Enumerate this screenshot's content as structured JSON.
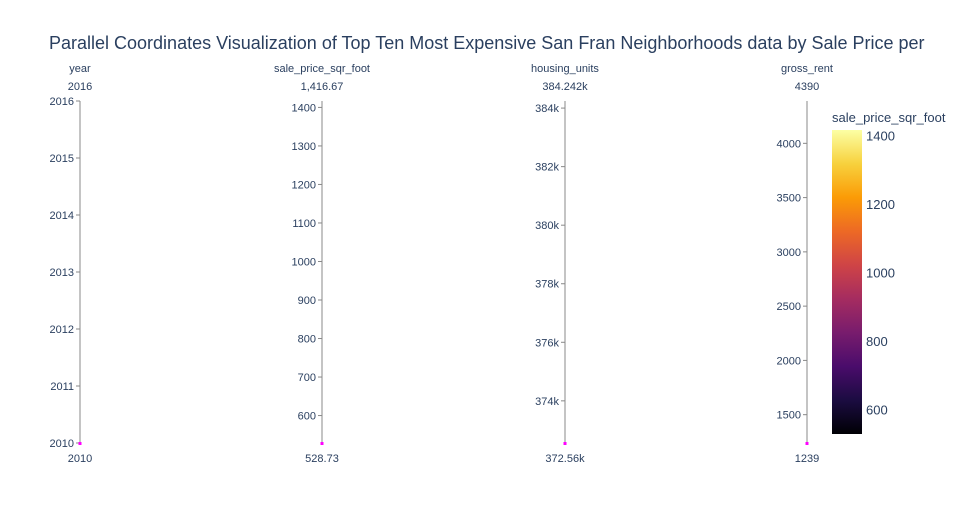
{
  "chart_data": {
    "type": "parallel_coordinates",
    "title": "Parallel Coordinates Visualization of Top Ten Most Expensive San Fran Neighborhoods data by Sale Price per",
    "dimensions": [
      {
        "label": "year",
        "range": [
          2010,
          2016
        ],
        "top_label": "2016",
        "bottom_label": "2010",
        "ticks": [
          {
            "value": 2010,
            "label": "2010"
          },
          {
            "value": 2011,
            "label": "2011"
          },
          {
            "value": 2012,
            "label": "2012"
          },
          {
            "value": 2013,
            "label": "2013"
          },
          {
            "value": 2014,
            "label": "2014"
          },
          {
            "value": 2015,
            "label": "2015"
          },
          {
            "value": 2016,
            "label": "2016"
          }
        ]
      },
      {
        "label": "sale_price_sqr_foot",
        "range": [
          528.73,
          1416.67
        ],
        "top_label": "1,416.67",
        "bottom_label": "528.73",
        "ticks": [
          {
            "value": 600,
            "label": "600"
          },
          {
            "value": 700,
            "label": "700"
          },
          {
            "value": 800,
            "label": "800"
          },
          {
            "value": 900,
            "label": "900"
          },
          {
            "value": 1000,
            "label": "1000"
          },
          {
            "value": 1100,
            "label": "1100"
          },
          {
            "value": 1200,
            "label": "1200"
          },
          {
            "value": 1300,
            "label": "1300"
          },
          {
            "value": 1400,
            "label": "1400"
          }
        ]
      },
      {
        "label": "housing_units",
        "range": [
          372560,
          384242
        ],
        "top_label": "384.242k",
        "bottom_label": "372.56k",
        "ticks": [
          {
            "value": 374000,
            "label": "374k"
          },
          {
            "value": 376000,
            "label": "376k"
          },
          {
            "value": 378000,
            "label": "378k"
          },
          {
            "value": 380000,
            "label": "380k"
          },
          {
            "value": 382000,
            "label": "382k"
          },
          {
            "value": 384000,
            "label": "384k"
          }
        ]
      },
      {
        "label": "gross_rent",
        "range": [
          1239,
          4390
        ],
        "top_label": "4390",
        "bottom_label": "1239",
        "ticks": [
          {
            "value": 1500,
            "label": "1500"
          },
          {
            "value": 2000,
            "label": "2000"
          },
          {
            "value": 2500,
            "label": "2500"
          },
          {
            "value": 3000,
            "label": "3000"
          },
          {
            "value": 3500,
            "label": "3500"
          },
          {
            "value": 4000,
            "label": "4000"
          }
        ]
      }
    ],
    "selected_marker_color": "#ff00ff",
    "colorbar": {
      "title": "sale_price_sqr_foot",
      "colorscale": "inferno",
      "range": [
        528.73,
        1416.67
      ],
      "ticks": [
        {
          "value": 600,
          "label": "600"
        },
        {
          "value": 800,
          "label": "800"
        },
        {
          "value": 1000,
          "label": "1000"
        },
        {
          "value": 1200,
          "label": "1200"
        },
        {
          "value": 1400,
          "label": "1400"
        }
      ],
      "colors": [
        "#000004",
        "#1b0c41",
        "#4a0c6b",
        "#781c6d",
        "#a52c60",
        "#cf4446",
        "#ed6925",
        "#fb9b06",
        "#f7d13d",
        "#fcffa4"
      ]
    }
  }
}
